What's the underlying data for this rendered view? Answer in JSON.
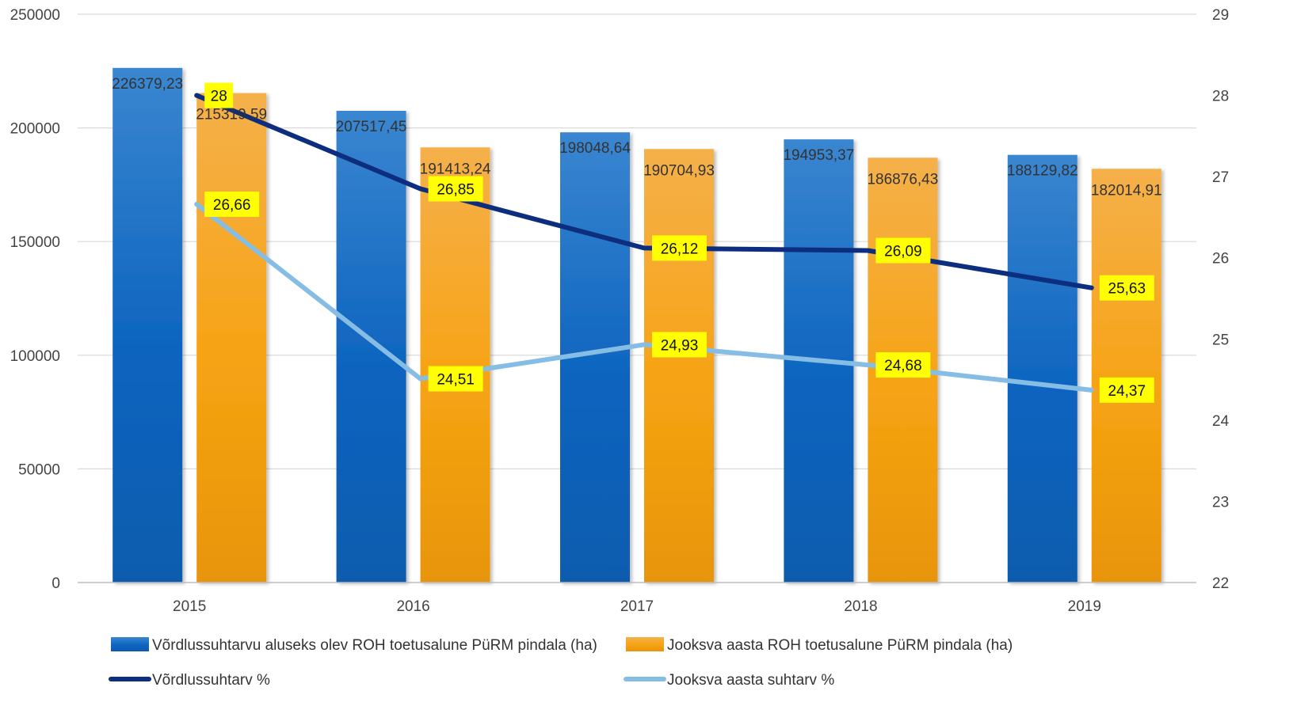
{
  "chart_data": {
    "type": "bar",
    "title": "",
    "xlabel": "",
    "ylabel": "",
    "categories": [
      "2015",
      "2016",
      "2017",
      "2018",
      "2019"
    ],
    "ylim": [
      0,
      250000
    ],
    "y_ticks": [
      "0",
      "50000",
      "100000",
      "150000",
      "200000",
      "250000"
    ],
    "y2lim": [
      22,
      29
    ],
    "y2_ticks": [
      "22",
      "23",
      "24",
      "25",
      "26",
      "27",
      "28",
      "29"
    ],
    "grid": true,
    "legend_position": "bottom",
    "series": [
      {
        "name": "Võrdlussuhtarvu aluseks olev ROH toetusalune PüRM pindala (ha)",
        "type": "bar",
        "axis": "left",
        "color": "#1f6fc1",
        "values": [
          226379.23,
          207517.45,
          198048.64,
          194953.37,
          188129.82
        ],
        "labels": [
          "226379,23",
          "207517,45",
          "198048,64",
          "194953,37",
          "188129,82"
        ]
      },
      {
        "name": "Jooksva aasta ROH toetusalune PüRM pindala (ha)",
        "type": "bar",
        "axis": "left",
        "color": "#f5a623",
        "values": [
          215319.59,
          191413.24,
          190704.93,
          186876.43,
          182014.91
        ],
        "labels": [
          "215319.59",
          "191413,24",
          "190704,93",
          "186876,43",
          "182014,91"
        ]
      },
      {
        "name": "Võrdlussuhtarv %",
        "type": "line",
        "axis": "right",
        "color": "#0d2d7e",
        "values": [
          28,
          26.85,
          26.12,
          26.09,
          25.63
        ],
        "labels": [
          "28",
          "26,85",
          "26,12",
          "26,09",
          "25,63"
        ]
      },
      {
        "name": "Jooksva aasta suhtarv %",
        "type": "line",
        "axis": "right",
        "color": "#86bde4",
        "values": [
          26.66,
          24.51,
          24.93,
          24.68,
          24.37
        ],
        "labels": [
          "26,66",
          "24,51",
          "24,93",
          "24,68",
          "24,37"
        ]
      }
    ],
    "label_box_color": "#ffff00"
  }
}
